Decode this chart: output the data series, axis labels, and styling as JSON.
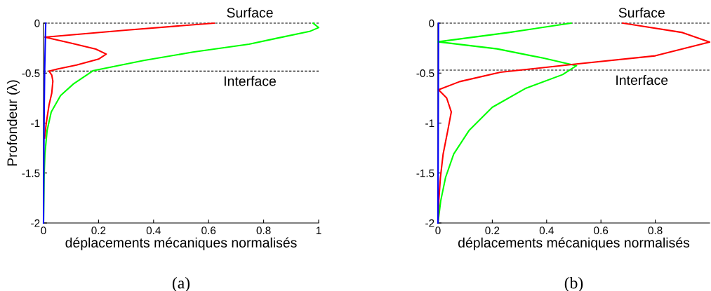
{
  "chart_data": [
    {
      "type": "line",
      "ylabel": "Profondeur (λ)",
      "xlabel": "déplacements mécaniques normalisés",
      "annotations": [
        "(a)"
      ],
      "xlim": [
        0,
        1
      ],
      "xticks": [
        0,
        0.2,
        0.4,
        0.6,
        0.8,
        1
      ],
      "ylim": [
        -2,
        0
      ],
      "yticks": [
        {
          "value": -2,
          "label": "-2"
        },
        {
          "value": -1.5,
          "label": "-1.5"
        },
        {
          "value": -1,
          "label": "-1"
        },
        {
          "value": -0.5,
          "label": "-0.5"
        },
        0
      ],
      "grid": false,
      "legend": false,
      "ref_lines": [
        {
          "axis": "y",
          "value": 0,
          "label": "Surface",
          "color": "#000000",
          "line_style": "dashed"
        },
        {
          "axis": "y",
          "value": -0.48,
          "label": "Interface",
          "color": "#000000",
          "line_style": "dashed"
        }
      ],
      "series": [
        {
          "color": "#ff0000",
          "x": [
            0.62,
            0.3,
            0.005,
            0.1,
            0.19,
            0.228,
            0.2,
            0.12,
            0.05,
            0.02,
            0.03,
            0.034,
            0.03,
            0.02,
            0.01,
            0.004
          ],
          "values": [
            0,
            -0.07,
            -0.14,
            -0.2,
            -0.26,
            -0.31,
            -0.36,
            -0.42,
            -0.46,
            -0.48,
            -0.52,
            -0.58,
            -0.7,
            -0.82,
            -1.0,
            -1.15
          ]
        },
        {
          "color": "#00ff00",
          "x": [
            0.98,
            1.0,
            0.97,
            0.85,
            0.747,
            0.543,
            0.364,
            0.181,
            0.109,
            0.062,
            0.028,
            0.013,
            0.005,
            0.002,
            0
          ],
          "values": [
            0,
            -0.045,
            -0.08,
            -0.15,
            -0.21,
            -0.29,
            -0.374,
            -0.475,
            -0.608,
            -0.725,
            -0.889,
            -1.076,
            -1.31,
            -1.54,
            -2
          ]
        },
        {
          "color": "#0000ff",
          "x": [
            0.008,
            0.004,
            0.002,
            0
          ],
          "values": [
            0,
            -0.5,
            -1,
            -2
          ]
        }
      ]
    },
    {
      "type": "line",
      "xlabel": "déplacements mécaniques normalisés",
      "annotations": [
        "(b)"
      ],
      "xlim": [
        0,
        1
      ],
      "xticks": [
        0,
        0.2,
        0.4,
        0.6,
        0.8
      ],
      "ylim": [
        -2,
        0
      ],
      "yticks": [
        {
          "value": -2,
          "label": "-2"
        },
        {
          "value": -1.5,
          "label": "-1.5"
        },
        {
          "value": -1,
          "label": "-1"
        },
        {
          "value": -0.5,
          "label": "-0.5"
        },
        0
      ],
      "grid": false,
      "legend": false,
      "ref_lines": [
        {
          "axis": "y",
          "value": 0,
          "label": "Surface",
          "color": "#000000",
          "line_style": "dashed"
        },
        {
          "axis": "y",
          "value": -0.47,
          "label": "Interface",
          "color": "#000000",
          "line_style": "dashed"
        }
      ],
      "series": [
        {
          "color": "#00ff00",
          "x": [
            0.49,
            0.26,
            0.0,
            0.217,
            0.39,
            0.51,
            0.459,
            0.321,
            0.2,
            0.114,
            0.058,
            0.028,
            0.01,
            0
          ],
          "values": [
            0,
            -0.094,
            -0.187,
            -0.257,
            -0.351,
            -0.426,
            -0.515,
            -0.655,
            -0.842,
            -1.076,
            -1.31,
            -1.544,
            -1.78,
            -2
          ]
        },
        {
          "color": "#ff0000",
          "x": [
            0.68,
            0.9,
            1.0,
            0.8,
            0.51,
            0.23,
            0.08,
            0.002,
            0.032,
            0.049,
            0.036,
            0.019,
            0.009,
            0.003,
            0
          ],
          "values": [
            0,
            -0.094,
            -0.19,
            -0.327,
            -0.409,
            -0.491,
            -0.585,
            -0.667,
            -0.749,
            -0.889,
            -1.076,
            -1.31,
            -1.544,
            -1.78,
            -2
          ]
        },
        {
          "color": "#0000ff",
          "x": [
            0.002,
            0
          ],
          "values": [
            0,
            -2
          ]
        }
      ]
    }
  ]
}
